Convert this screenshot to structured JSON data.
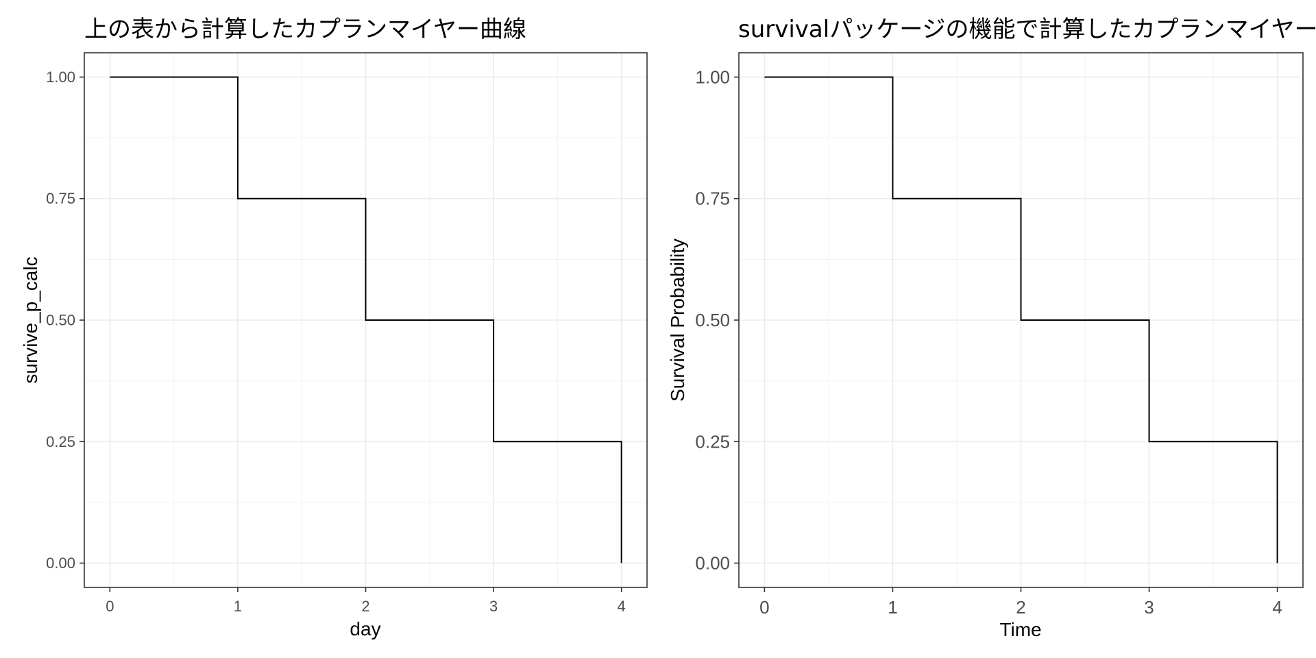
{
  "chart_data": [
    {
      "type": "line",
      "step": "hv",
      "title": "上の表から計算したカプランマイヤー曲線",
      "xlabel": "day",
      "ylabel": "survive_p_calc",
      "xlim": [
        -0.2,
        4.2
      ],
      "ylim": [
        -0.05,
        1.05
      ],
      "x_ticks": [
        "0",
        "1",
        "2",
        "3",
        "4"
      ],
      "y_ticks": [
        "0.00",
        "0.25",
        "0.50",
        "0.75",
        "1.00"
      ],
      "grid": true,
      "legend": "none",
      "series": [
        {
          "x": [
            0,
            1,
            2,
            3,
            4
          ],
          "y": [
            1.0,
            0.75,
            0.5,
            0.25,
            0.0
          ],
          "color": "#000000"
        }
      ]
    },
    {
      "type": "line",
      "step": "hv",
      "title": "survivalパッケージの機能で計算したカプランマイヤー曲線",
      "xlabel": "Time",
      "ylabel": "Survival Probability",
      "xlim": [
        -0.2,
        4.2
      ],
      "ylim": [
        -0.05,
        1.05
      ],
      "x_ticks": [
        "0",
        "1",
        "2",
        "3",
        "4"
      ],
      "y_ticks": [
        "0.00",
        "0.25",
        "0.50",
        "0.75",
        "1.00"
      ],
      "grid": true,
      "legend": "none",
      "series": [
        {
          "x": [
            0,
            1,
            2,
            3,
            4
          ],
          "y": [
            1.0,
            0.75,
            0.5,
            0.25,
            0.0
          ],
          "color": "#000000"
        }
      ]
    }
  ]
}
